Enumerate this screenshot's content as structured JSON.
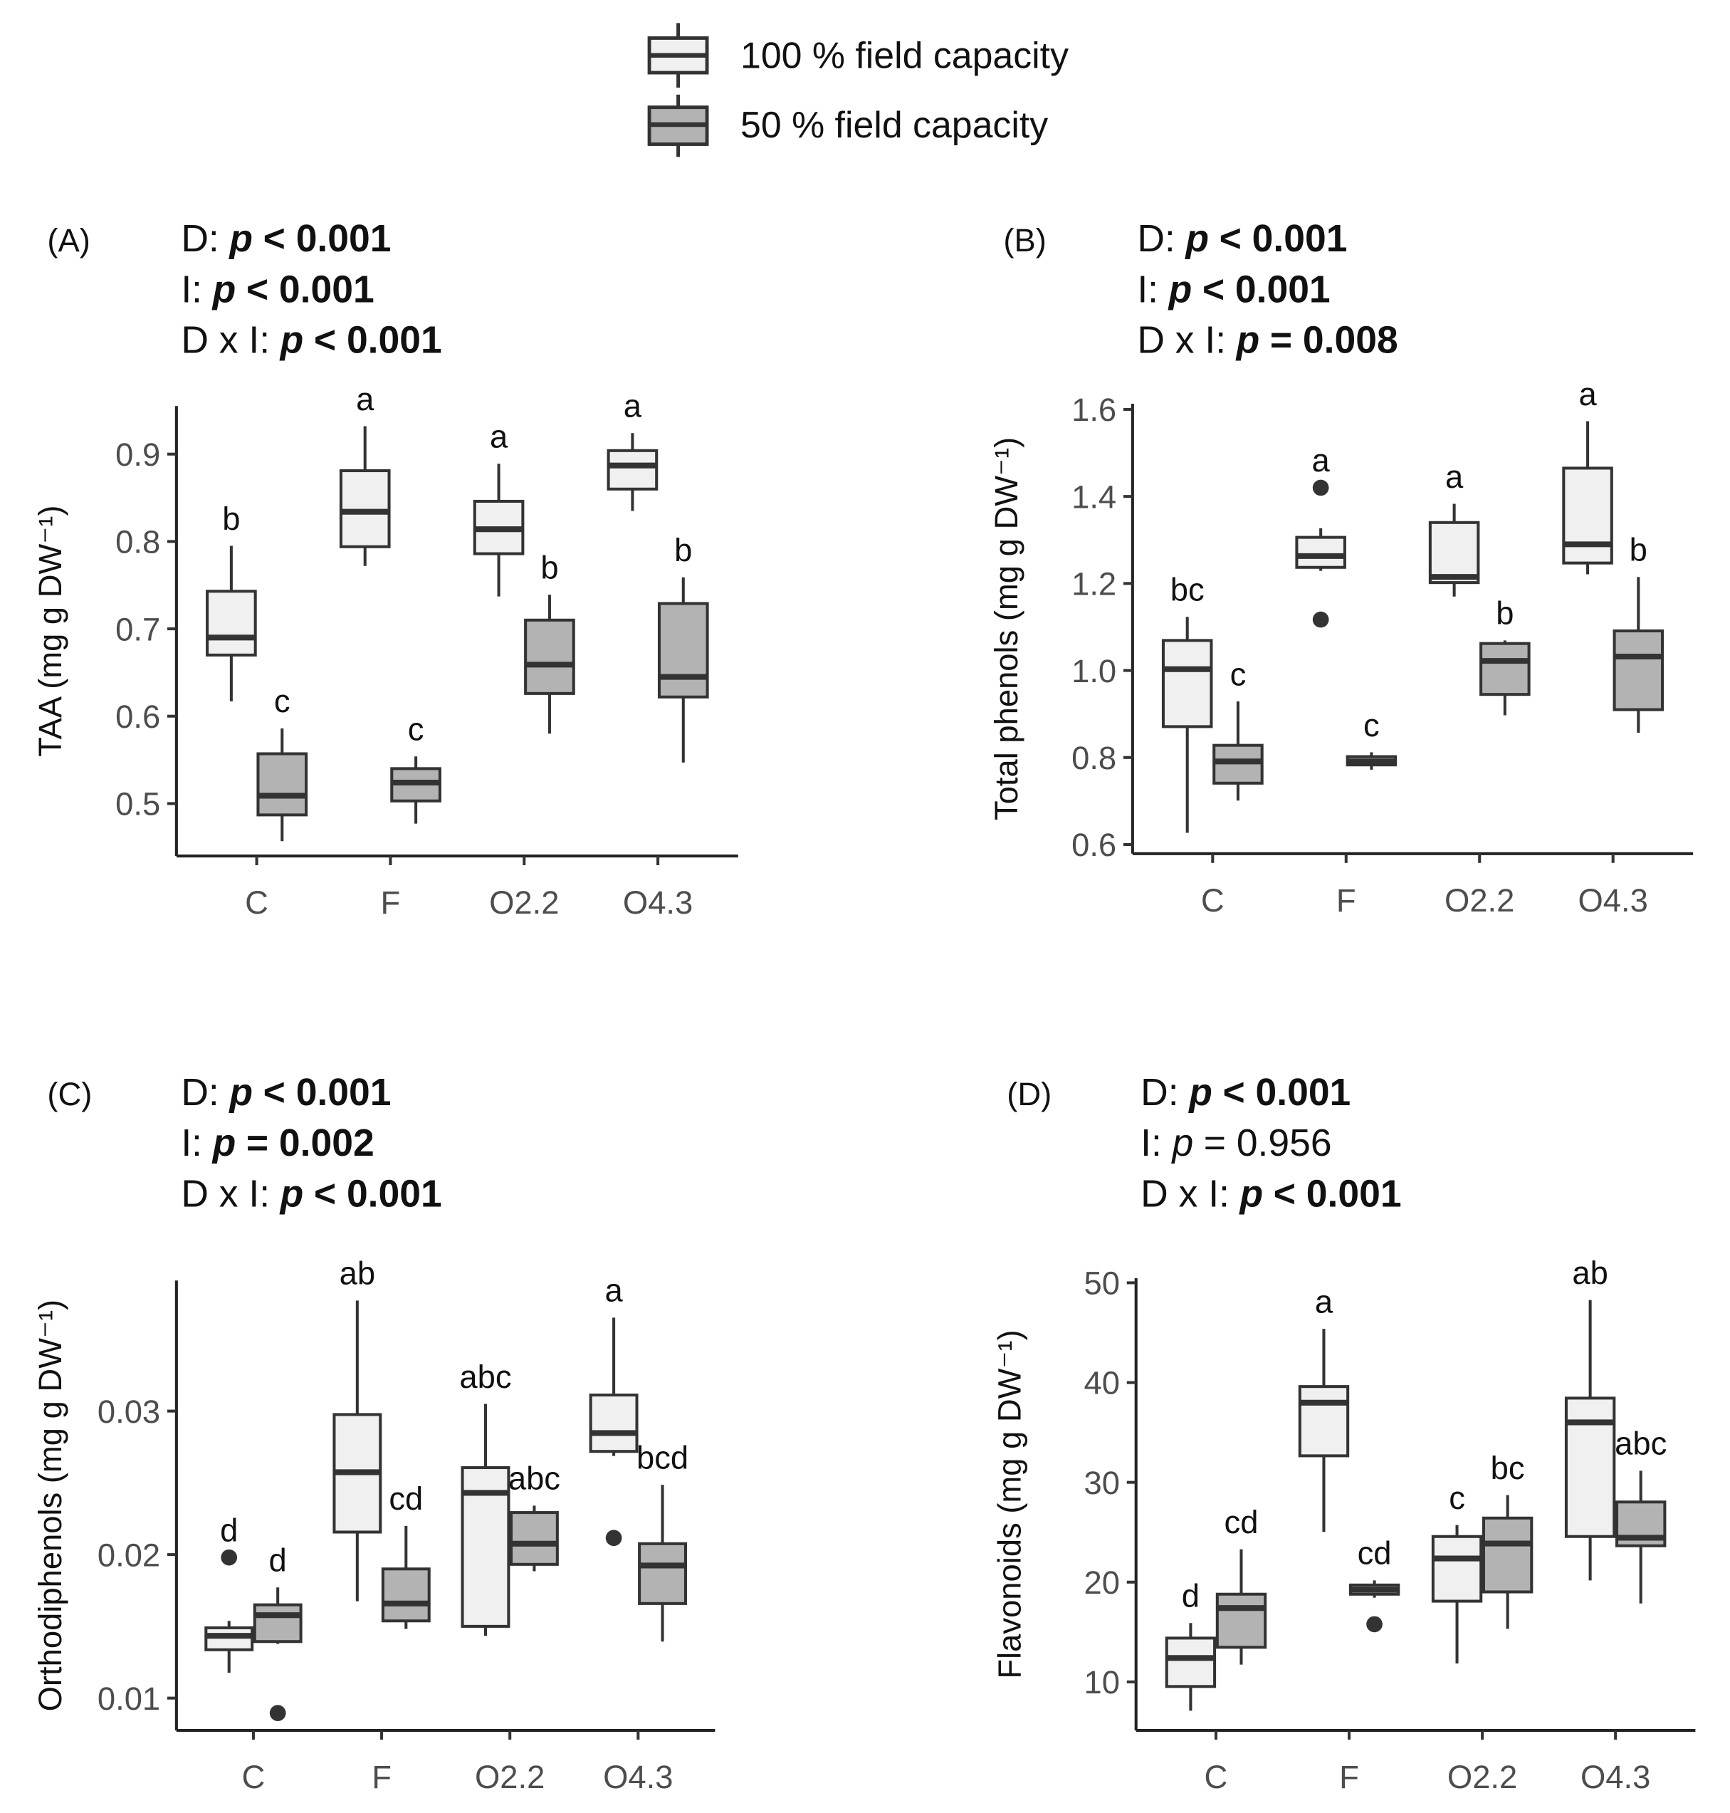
{
  "legend": [
    {
      "name": "100 % field capacity",
      "color": "#f0f0f0"
    },
    {
      "name": "50 % field capacity",
      "color": "#b3b3b3"
    }
  ],
  "chart_data": [
    {
      "type": "box",
      "panel_label": "(A)",
      "stats": [
        {
          "term": "D:",
          "symbol": "p",
          "result": "< 0.001",
          "bold": true
        },
        {
          "term": "I:",
          "symbol": "p",
          "result": "< 0.001",
          "bold": true
        },
        {
          "term": "D x I:",
          "symbol": "p",
          "result": "< 0.001",
          "bold": true
        }
      ],
      "ylabel": "TAA (mg g DW⁻¹)",
      "categories": [
        "C",
        "F",
        "O2.2",
        "O4.3"
      ],
      "ylim": [
        0.44,
        0.955
      ],
      "yticks": [
        0.5,
        0.6,
        0.7,
        0.8,
        0.9
      ],
      "series": [
        {
          "boxes": [
            {
              "min": 0.617,
              "q1": 0.67,
              "median": 0.69,
              "q3": 0.743,
              "max": 0.795,
              "outliers": [],
              "letter": "b"
            },
            {
              "min": 0.772,
              "q1": 0.794,
              "median": 0.834,
              "q3": 0.881,
              "max": 0.932,
              "outliers": [],
              "letter": "a"
            },
            {
              "min": 0.737,
              "q1": 0.786,
              "median": 0.814,
              "q3": 0.846,
              "max": 0.889,
              "outliers": [],
              "letter": "a"
            },
            {
              "min": 0.835,
              "q1": 0.86,
              "median": 0.887,
              "q3": 0.904,
              "max": 0.924,
              "outliers": [],
              "letter": "a"
            }
          ]
        },
        {
          "boxes": [
            {
              "min": 0.457,
              "q1": 0.487,
              "median": 0.509,
              "q3": 0.557,
              "max": 0.586,
              "outliers": [],
              "letter": "c"
            },
            {
              "min": 0.477,
              "q1": 0.503,
              "median": 0.524,
              "q3": 0.54,
              "max": 0.554,
              "outliers": [],
              "letter": "c"
            },
            {
              "min": 0.58,
              "q1": 0.626,
              "median": 0.659,
              "q3": 0.71,
              "max": 0.739,
              "outliers": [],
              "letter": "b"
            },
            {
              "min": 0.547,
              "q1": 0.622,
              "median": 0.645,
              "q3": 0.729,
              "max": 0.759,
              "outliers": [],
              "letter": "b"
            }
          ]
        }
      ]
    },
    {
      "type": "box",
      "panel_label": "(B)",
      "stats": [
        {
          "term": "D:",
          "symbol": "p",
          "result": "< 0.001",
          "bold": true
        },
        {
          "term": "I:",
          "symbol": "p",
          "result": "< 0.001",
          "bold": true
        },
        {
          "term": "D x I:",
          "symbol": "p",
          "result": "= 0.008",
          "bold": true
        }
      ],
      "ylabel": "Total phenols (mg g DW⁻¹)",
      "categories": [
        "C",
        "F",
        "O2.2",
        "O4.3"
      ],
      "ylim": [
        0.579,
        1.613
      ],
      "yticks": [
        0.6,
        0.8,
        {
          "value": 1,
          "label": "1.0"
        },
        1.2,
        1.4,
        1.6
      ],
      "series": [
        {
          "boxes": [
            {
              "min": 0.627,
              "q1": 0.871,
              "median": 1.003,
              "q3": 1.069,
              "max": 1.123,
              "outliers": [],
              "letter": "bc"
            },
            {
              "min": 1.229,
              "q1": 1.237,
              "median": 1.263,
              "q3": 1.306,
              "max": 1.327,
              "outliers": [
                1.42,
                1.117
              ],
              "letter": "a"
            },
            {
              "min": 1.17,
              "q1": 1.202,
              "median": 1.215,
              "q3": 1.34,
              "max": 1.383,
              "outliers": [],
              "letter": "a"
            },
            {
              "min": 1.221,
              "q1": 1.247,
              "median": 1.29,
              "q3": 1.465,
              "max": 1.573,
              "outliers": [],
              "letter": "a"
            }
          ]
        },
        {
          "boxes": [
            {
              "min": 0.701,
              "q1": 0.741,
              "median": 0.791,
              "q3": 0.828,
              "max": 0.929,
              "outliers": [],
              "letter": "c"
            },
            {
              "min": 0.772,
              "q1": 0.783,
              "median": 0.791,
              "q3": 0.802,
              "max": 0.812,
              "outliers": [],
              "letter": "c"
            },
            {
              "min": 0.897,
              "q1": 0.945,
              "median": 1.022,
              "q3": 1.062,
              "max": 1.069,
              "outliers": [],
              "letter": "b"
            },
            {
              "min": 0.857,
              "q1": 0.91,
              "median": 1.032,
              "q3": 1.091,
              "max": 1.215,
              "outliers": [],
              "letter": "b"
            }
          ]
        }
      ]
    },
    {
      "type": "box",
      "panel_label": "(C)",
      "stats": [
        {
          "term": "D:",
          "symbol": "p",
          "result": "< 0.001",
          "bold": true
        },
        {
          "term": "I:",
          "symbol": "p",
          "result": "= 0.002",
          "bold": true
        },
        {
          "term": "D x I:",
          "symbol": "p",
          "result": "< 0.001",
          "bold": true
        }
      ],
      "ylabel": "Orthodiphenols (mg g DW⁻¹)",
      "categories": [
        "C",
        "F",
        "O2.2",
        "O4.3"
      ],
      "ylim": [
        0.00775,
        0.0391
      ],
      "yticks": [
        0.01,
        0.02,
        0.03
      ],
      "series": [
        {
          "boxes": [
            {
              "min": 0.01177,
              "q1": 0.01337,
              "median": 0.01434,
              "q3": 0.0149,
              "max": 0.01538,
              "outliers": [
                0.0198
              ],
              "letter": "d"
            },
            {
              "min": 0.01675,
              "q1": 0.02157,
              "median": 0.02574,
              "q3": 0.02976,
              "max": 0.0377,
              "outliers": [],
              "letter": "ab"
            },
            {
              "min": 0.01434,
              "q1": 0.015,
              "median": 0.0243,
              "q3": 0.02606,
              "max": 0.0305,
              "outliers": [],
              "letter": "abc"
            },
            {
              "min": 0.02687,
              "q1": 0.02719,
              "median": 0.02847,
              "q3": 0.03112,
              "max": 0.03651,
              "outliers": [
                0.02116
              ],
              "letter": "a"
            }
          ]
        },
        {
          "boxes": [
            {
              "min": 0.01378,
              "q1": 0.01394,
              "median": 0.01578,
              "q3": 0.0165,
              "max": 0.01771,
              "outliers": [
                0.00896
              ],
              "letter": "d"
            },
            {
              "min": 0.01482,
              "q1": 0.01538,
              "median": 0.01659,
              "q3": 0.019,
              "max": 0.022,
              "outliers": [],
              "letter": "cd"
            },
            {
              "min": 0.01884,
              "q1": 0.01932,
              "median": 0.02076,
              "q3": 0.02293,
              "max": 0.02341,
              "outliers": [],
              "letter": "abc"
            },
            {
              "min": 0.01394,
              "q1": 0.01659,
              "median": 0.01924,
              "q3": 0.02076,
              "max": 0.02486,
              "outliers": [],
              "letter": "bcd"
            }
          ]
        }
      ]
    },
    {
      "type": "box",
      "panel_label": "(D)",
      "stats": [
        {
          "term": "D:",
          "symbol": "p",
          "result": "< 0.001",
          "bold": true
        },
        {
          "term": "I:",
          "symbol": "p",
          "result": "= 0.956",
          "bold": false
        },
        {
          "term": "D x I:",
          "symbol": "p",
          "result": "< 0.001",
          "bold": true
        }
      ],
      "ylabel": "Flavonoids (mg g DW⁻¹)",
      "categories": [
        "C",
        "F",
        "O2.2",
        "O4.3"
      ],
      "ylim": [
        5.14,
        50.46
      ],
      "yticks": [
        10,
        20,
        30,
        40,
        50
      ],
      "series": [
        {
          "boxes": [
            {
              "min": 7.11,
              "q1": 9.54,
              "median": 12.4,
              "q3": 14.39,
              "max": 15.9,
              "outliers": [],
              "letter": "d"
            },
            {
              "min": 25.03,
              "q1": 32.66,
              "median": 37.98,
              "q3": 39.6,
              "max": 45.38,
              "outliers": [],
              "letter": "a"
            },
            {
              "min": 11.85,
              "q1": 18.09,
              "median": 22.37,
              "q3": 24.57,
              "max": 25.72,
              "outliers": [],
              "letter": "c"
            },
            {
              "min": 20.17,
              "q1": 24.57,
              "median": 36.01,
              "q3": 38.44,
              "max": 48.27,
              "outliers": [],
              "letter": "ab"
            }
          ]
        },
        {
          "boxes": [
            {
              "min": 11.73,
              "q1": 13.47,
              "median": 17.4,
              "q3": 18.79,
              "max": 23.29,
              "outliers": [],
              "letter": "cd"
            },
            {
              "min": 18.44,
              "q1": 18.79,
              "median": 19.25,
              "q3": 19.71,
              "max": 20.17,
              "outliers": [
                15.78
              ],
              "letter": "cd"
            },
            {
              "min": 15.32,
              "q1": 19.02,
              "median": 23.87,
              "q3": 26.42,
              "max": 28.73,
              "outliers": [],
              "letter": "bc"
            },
            {
              "min": 17.86,
              "q1": 23.64,
              "median": 24.45,
              "q3": 28.03,
              "max": 31.16,
              "outliers": [],
              "letter": "abc"
            }
          ]
        }
      ]
    }
  ]
}
